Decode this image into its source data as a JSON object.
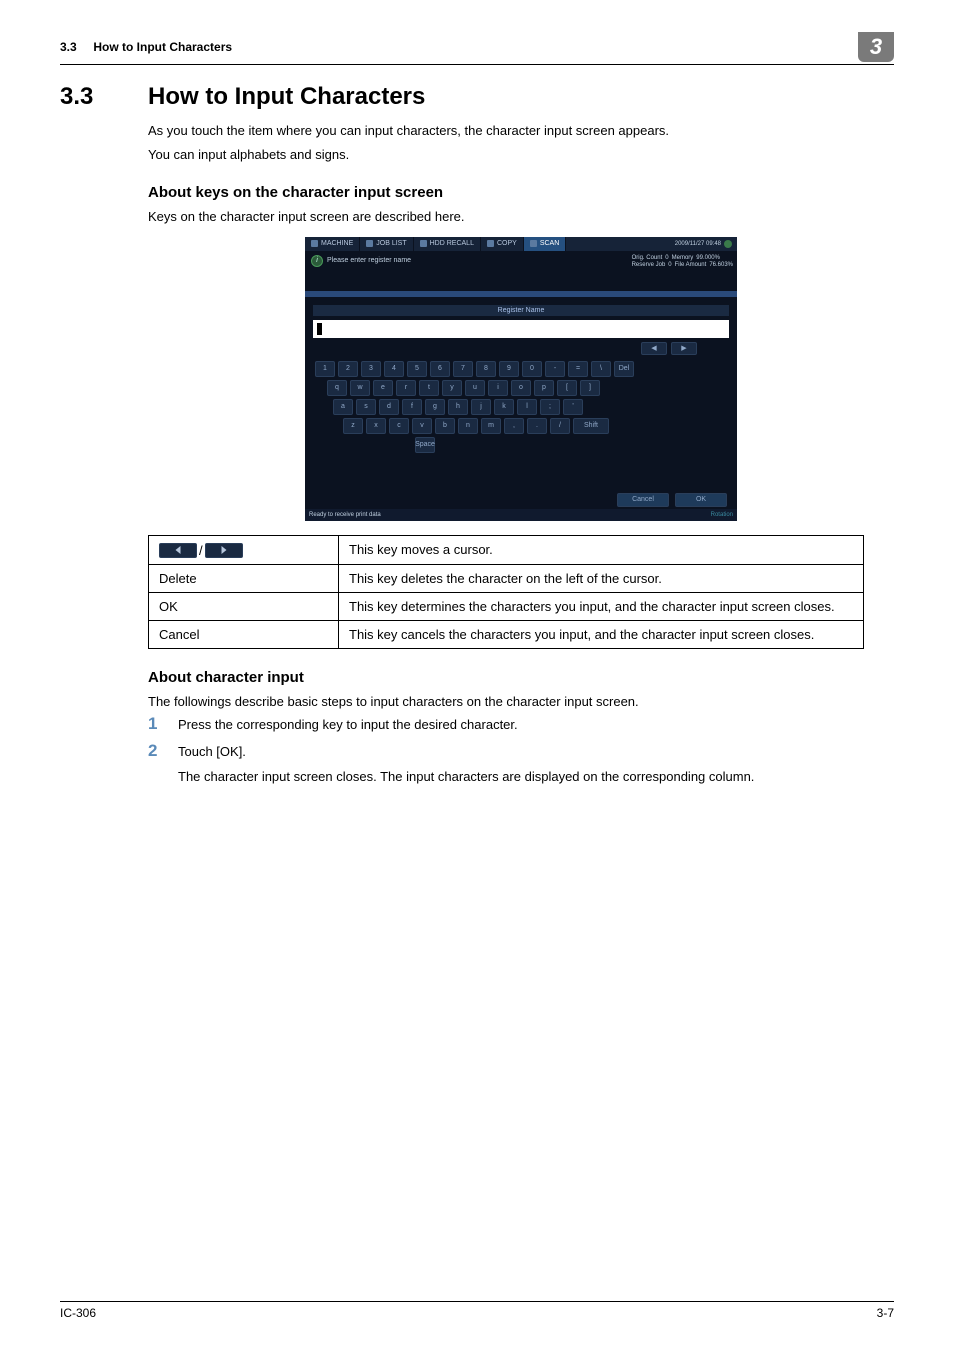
{
  "header": {
    "section_ref": "3.3",
    "section_title_small": "How to Input Characters",
    "badge": "3"
  },
  "main": {
    "section_num": "3.3",
    "section_heading": "How to Input Characters",
    "intro_line1": "As you touch the item where you can input characters, the character input screen appears.",
    "intro_line2": "You can input alphabets and signs.",
    "sub1_heading": "About keys on the character input screen",
    "sub1_line1": "Keys on the character input screen are described here.",
    "sub2_heading": "About character input",
    "sub2_line1": "The followings describe basic steps to input characters on the character input screen.",
    "step1": "Press the corresponding key to input the desired character.",
    "step2": "Touch [OK].",
    "step2_sub": "The character input screen closes.  The input characters are displayed on the corresponding column."
  },
  "screenshot": {
    "tabs": {
      "machine": "MACHINE",
      "joblist": "JOB LIST",
      "recall": "HDD RECALL",
      "copy": "COPY",
      "scan": "SCAN"
    },
    "time": "2009/11/27 09:48",
    "prompt": "Please enter register name",
    "status": {
      "orig_count_label": "Orig. Count",
      "orig_count_val": "0",
      "memory_label": "Memory",
      "memory_val": "99.000%",
      "reserve_label": "Reserve Job",
      "reserve_val": "0",
      "file_amount_label": "File Amount",
      "file_amount_val": "76.603%"
    },
    "register_name_label": "Register Name",
    "keys": {
      "row1": [
        "1",
        "2",
        "3",
        "4",
        "5",
        "6",
        "7",
        "8",
        "9",
        "0",
        "-",
        "=",
        "\\"
      ],
      "del": "Del",
      "row2": [
        "q",
        "w",
        "e",
        "r",
        "t",
        "y",
        "u",
        "i",
        "o",
        "p",
        "[",
        "]"
      ],
      "row3": [
        "a",
        "s",
        "d",
        "f",
        "g",
        "h",
        "j",
        "k",
        "l",
        ";",
        "'"
      ],
      "row4": [
        "z",
        "x",
        "c",
        "v",
        "b",
        "n",
        "m",
        ",",
        ".",
        "/"
      ],
      "shift": "Shift",
      "space": "Space"
    },
    "bottom": {
      "cancel": "Cancel",
      "ok": "OK"
    },
    "footer_left": "Ready to receive print data",
    "footer_right": "Rotation"
  },
  "table": {
    "row1_desc": "This key moves a cursor.",
    "row2_label": "Delete",
    "row2_desc": "This key deletes the character on the left of the cursor.",
    "row3_label": "OK",
    "row3_desc": "This key determines the characters you input, and the character input screen closes.",
    "row4_label": "Cancel",
    "row4_desc": "This key cancels the characters you input, and the character input screen closes."
  },
  "footer": {
    "left": "IC-306",
    "right": "3-7"
  },
  "styling": {
    "badge_bg": "#7a7a7a",
    "step_num_color": "#5a8ab8",
    "screenshot_bg": "#0b1220",
    "key_bg": "#1a2a42"
  }
}
